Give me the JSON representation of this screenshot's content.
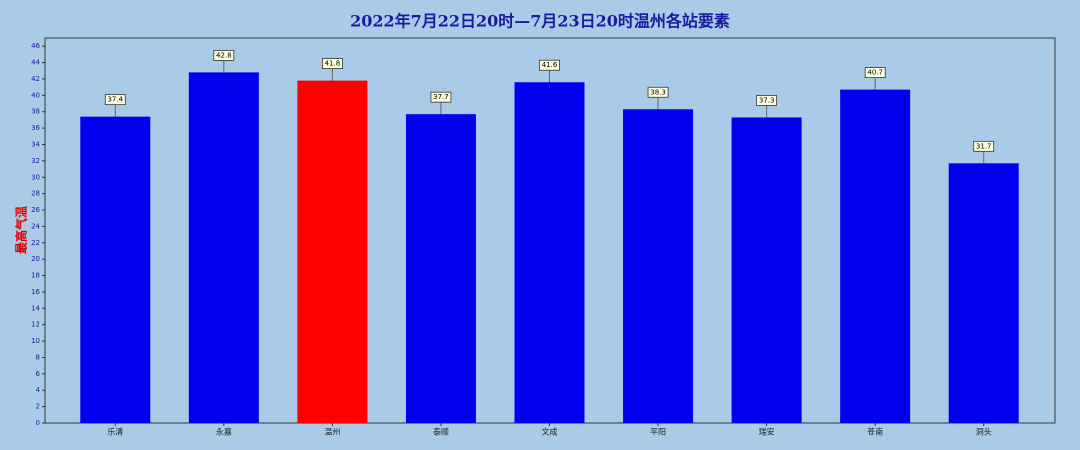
{
  "chart_data": {
    "type": "bar",
    "title": "2022年7月22日20时—7月23日20时温州各站要素",
    "y_label": "最高气温",
    "categories": [
      "乐清",
      "永嘉",
      "温州",
      "泰顺",
      "文成",
      "平阳",
      "瑞安",
      "苍南",
      "洞头"
    ],
    "values": [
      37.4,
      42.8,
      41.8,
      37.7,
      41.6,
      38.3,
      37.3,
      40.7,
      31.7
    ],
    "colors": [
      "#0000ee",
      "#0000ee",
      "#ff0000",
      "#0000ee",
      "#0000ee",
      "#0000ee",
      "#0000ee",
      "#0000ee",
      "#0000ee"
    ],
    "ylim": [
      0,
      47
    ],
    "yticks": [
      0,
      2,
      4,
      6,
      8,
      10,
      12,
      14,
      16,
      18,
      20,
      22,
      24,
      26,
      28,
      30,
      32,
      34,
      36,
      38,
      40,
      42,
      44,
      46
    ],
    "grid": false
  }
}
